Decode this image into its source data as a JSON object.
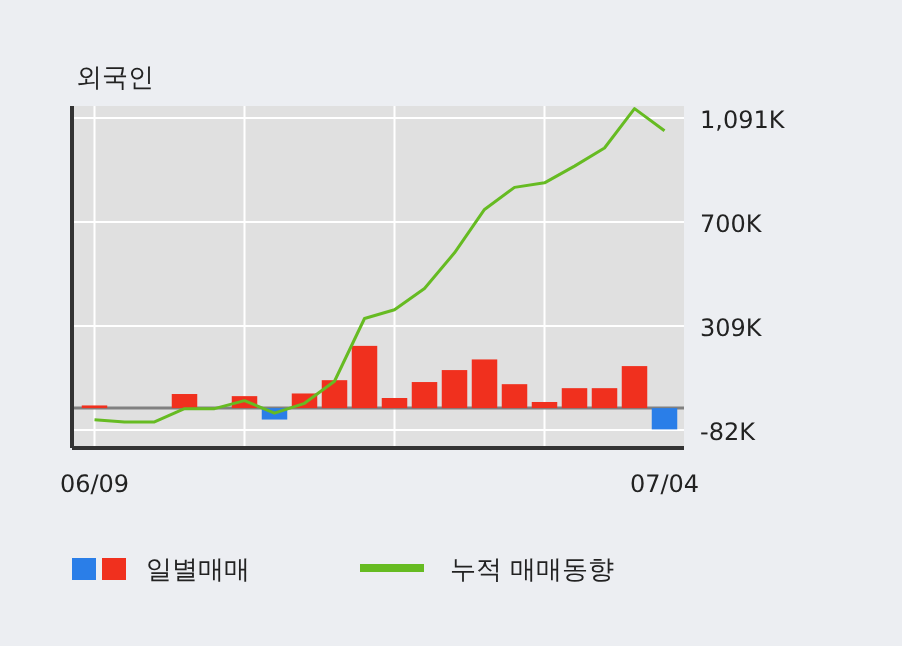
{
  "chart_data": {
    "type": "bar",
    "title": "외국인",
    "categories": [
      "06/09",
      null,
      null,
      null,
      null,
      null,
      null,
      null,
      null,
      null,
      null,
      null,
      null,
      null,
      null,
      null,
      null,
      null,
      null,
      "07/04"
    ],
    "series": [
      {
        "name": "일별매매",
        "colors": [
          "#f0301e",
          "#f0301e",
          "#f0301e",
          "#f0301e",
          "#f0301e",
          "#f0301e",
          "#2a7ee8",
          "#f0301e",
          "#f0301e",
          "#f0301e",
          "#f0301e",
          "#f0301e",
          "#f0301e",
          "#f0301e",
          "#f0301e",
          "#f0301e",
          "#f0301e",
          "#f0301e",
          "#f0301e",
          "#2a7ee8"
        ],
        "values": [
          10,
          0,
          0,
          53,
          0,
          45,
          -43,
          55,
          105,
          234,
          38,
          98,
          143,
          183,
          90,
          23,
          75,
          75,
          158,
          -80
        ]
      },
      {
        "name": "누적 매매동향",
        "type": "line",
        "color": "#66bb22",
        "values": [
          -44,
          -52,
          -52,
          -2,
          -2,
          28,
          -19,
          18,
          101,
          337,
          370,
          450,
          584,
          747,
          830,
          847,
          910,
          978,
          1126,
          1043
        ]
      }
    ],
    "ylim": [
      -150,
      1136
    ],
    "yticks": [
      {
        "value": -82,
        "label": "-82K"
      },
      {
        "value": 309,
        "label": "309K"
      },
      {
        "value": 700,
        "label": "700K"
      },
      {
        "value": 1091,
        "label": "1,091K"
      }
    ],
    "ref_lines": [
      {
        "axis": "y",
        "value": 0,
        "color": "#808080"
      }
    ],
    "grid": true,
    "legend": "bottom"
  }
}
